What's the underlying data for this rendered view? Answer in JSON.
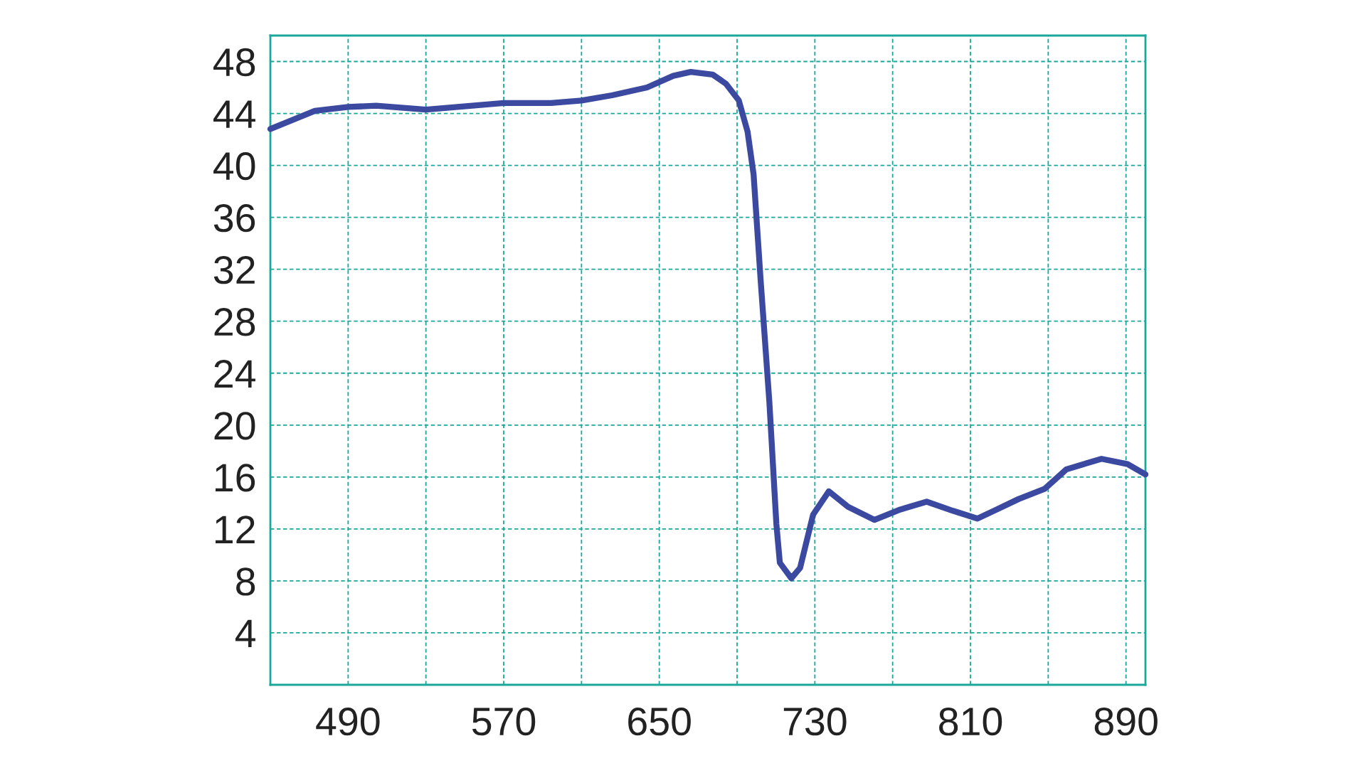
{
  "chart_data": {
    "type": "line",
    "xlim": [
      450,
      900
    ],
    "ylim": [
      0,
      50
    ],
    "xticks": [
      {
        "value": 490,
        "label": "490"
      },
      {
        "value": 530,
        "label": null
      },
      {
        "value": 570,
        "label": "570"
      },
      {
        "value": 610,
        "label": null
      },
      {
        "value": 650,
        "label": "650"
      },
      {
        "value": 690,
        "label": null
      },
      {
        "value": 730,
        "label": "730"
      },
      {
        "value": 770,
        "label": null
      },
      {
        "value": 810,
        "label": "810"
      },
      {
        "value": 850,
        "label": null
      },
      {
        "value": 890,
        "label": "890"
      }
    ],
    "yticks": [
      4,
      8,
      12,
      16,
      20,
      24,
      28,
      32,
      36,
      40,
      44,
      48
    ],
    "grid": true,
    "marker": "none",
    "line_style": "solid",
    "series": [
      {
        "color": "#3b4aa0",
        "x": [
          450,
          472.9,
          490,
          504.4,
          530,
          553.8,
          570,
          594.3,
          610,
          625.7,
          643.7,
          657.2,
          666.2,
          677.4,
          684.2,
          690.9,
          695.4,
          698.5,
          702.1,
          706.6,
          710.2,
          712,
          717.9,
          722.4,
          729.1,
          737.2,
          747.1,
          760.6,
          774,
          787.5,
          801,
          813.6,
          823.5,
          834.7,
          848.2,
          859.4,
          877.4,
          890.8,
          900
        ],
        "values": [
          42.8,
          44.2,
          44.5,
          44.6,
          44.3,
          44.6,
          44.8,
          44.8,
          45.0,
          45.4,
          46.0,
          46.9,
          47.2,
          47.0,
          46.3,
          45.0,
          42.6,
          39.3,
          31.2,
          21.8,
          12.4,
          9.4,
          8.2,
          9.0,
          13.1,
          14.9,
          13.7,
          12.7,
          13.5,
          14.1,
          13.4,
          12.8,
          13.5,
          14.3,
          15.1,
          16.6,
          17.4,
          17.0,
          16.2
        ]
      }
    ]
  }
}
